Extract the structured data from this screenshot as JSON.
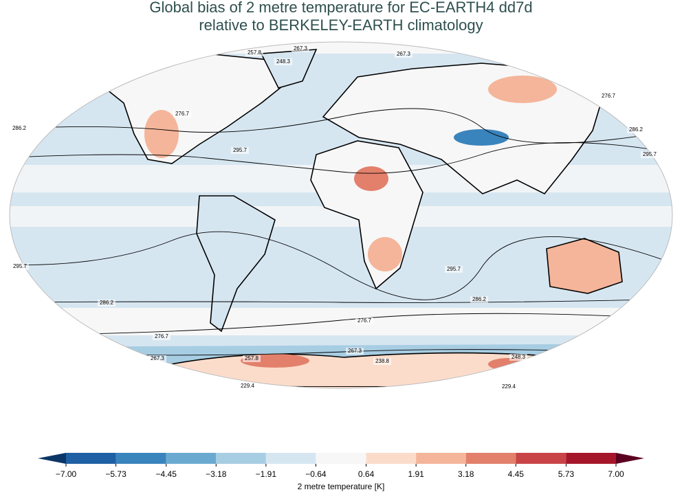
{
  "title": [
    "Global bias of 2 metre temperature for EC-EARTH4 dd7d",
    "relative to BERKELEY-EARTH climatology"
  ],
  "contour_labels": [
    "257.8",
    "267.3",
    "248.3",
    "267.3",
    "276.7",
    "276.7",
    "286.2",
    "286.2",
    "295.7",
    "295.7",
    "295.7",
    "295.7",
    "286.2",
    "286.2",
    "276.7",
    "276.7",
    "267.3",
    "257.8",
    "238.8",
    "248.3",
    "229.4",
    "229.4",
    "267.3"
  ],
  "colorbar": {
    "label": "2 metre temperature [K]",
    "ticks": [
      {
        "value": -7,
        "label": "−7.00"
      },
      {
        "value": -5.73,
        "label": "−5.73"
      },
      {
        "value": -4.45,
        "label": "−4.45"
      },
      {
        "value": -3.18,
        "label": "−3.18"
      },
      {
        "value": -1.91,
        "label": "−1.91"
      },
      {
        "value": -0.64,
        "label": "−0.64"
      },
      {
        "value": 0.64,
        "label": "0.64"
      },
      {
        "value": 1.91,
        "label": "1.91"
      },
      {
        "value": 3.18,
        "label": "3.18"
      },
      {
        "value": 4.45,
        "label": "4.45"
      },
      {
        "value": 5.73,
        "label": "5.73"
      },
      {
        "value": 7,
        "label": "7.00"
      }
    ],
    "colors": [
      "#1f5fa3",
      "#3a84bd",
      "#6aaad1",
      "#a7cde3",
      "#d6e6f1",
      "#f7f7f7",
      "#fbdccb",
      "#f4b59a",
      "#e2806b",
      "#c94446",
      "#a6162a"
    ],
    "under_color": "#0b3667",
    "over_color": "#5c0021"
  }
}
